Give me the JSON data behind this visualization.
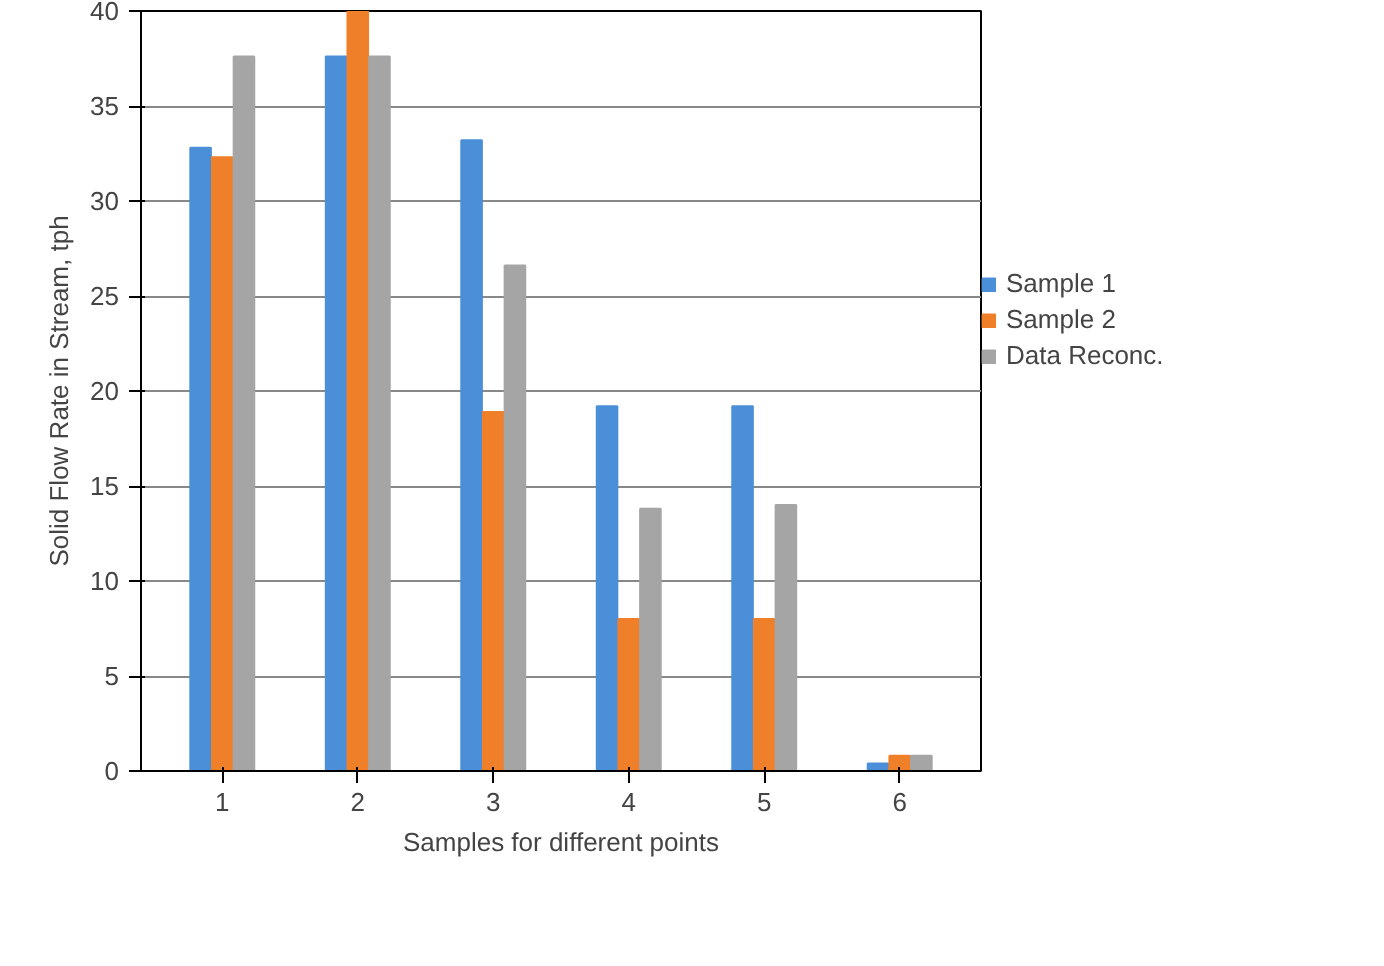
{
  "chart_data": {
    "type": "bar",
    "xlabel": "Samples for different points",
    "ylabel": "Solid Flow Rate in Stream, tph",
    "categories": [
      "1",
      "2",
      "3",
      "4",
      "5",
      "6"
    ],
    "series": [
      {
        "name": "Sample 1",
        "color": "#4a8fd8",
        "values": [
          32.8,
          37.6,
          33.2,
          19.2,
          19.2,
          0.4
        ]
      },
      {
        "name": "Sample 2",
        "color": "#f07f2a",
        "values": [
          32.3,
          40,
          18.9,
          8,
          8,
          0.8
        ]
      },
      {
        "name": "Data Reconc.",
        "color": "#a5a5a5",
        "values": [
          37.6,
          37.6,
          26.6,
          13.8,
          14,
          0.8
        ]
      }
    ],
    "ylim": [
      0,
      40
    ],
    "yticks": [
      0,
      5,
      10,
      15,
      20,
      25,
      30,
      35,
      40
    ],
    "grid": "y",
    "legend": "right"
  }
}
